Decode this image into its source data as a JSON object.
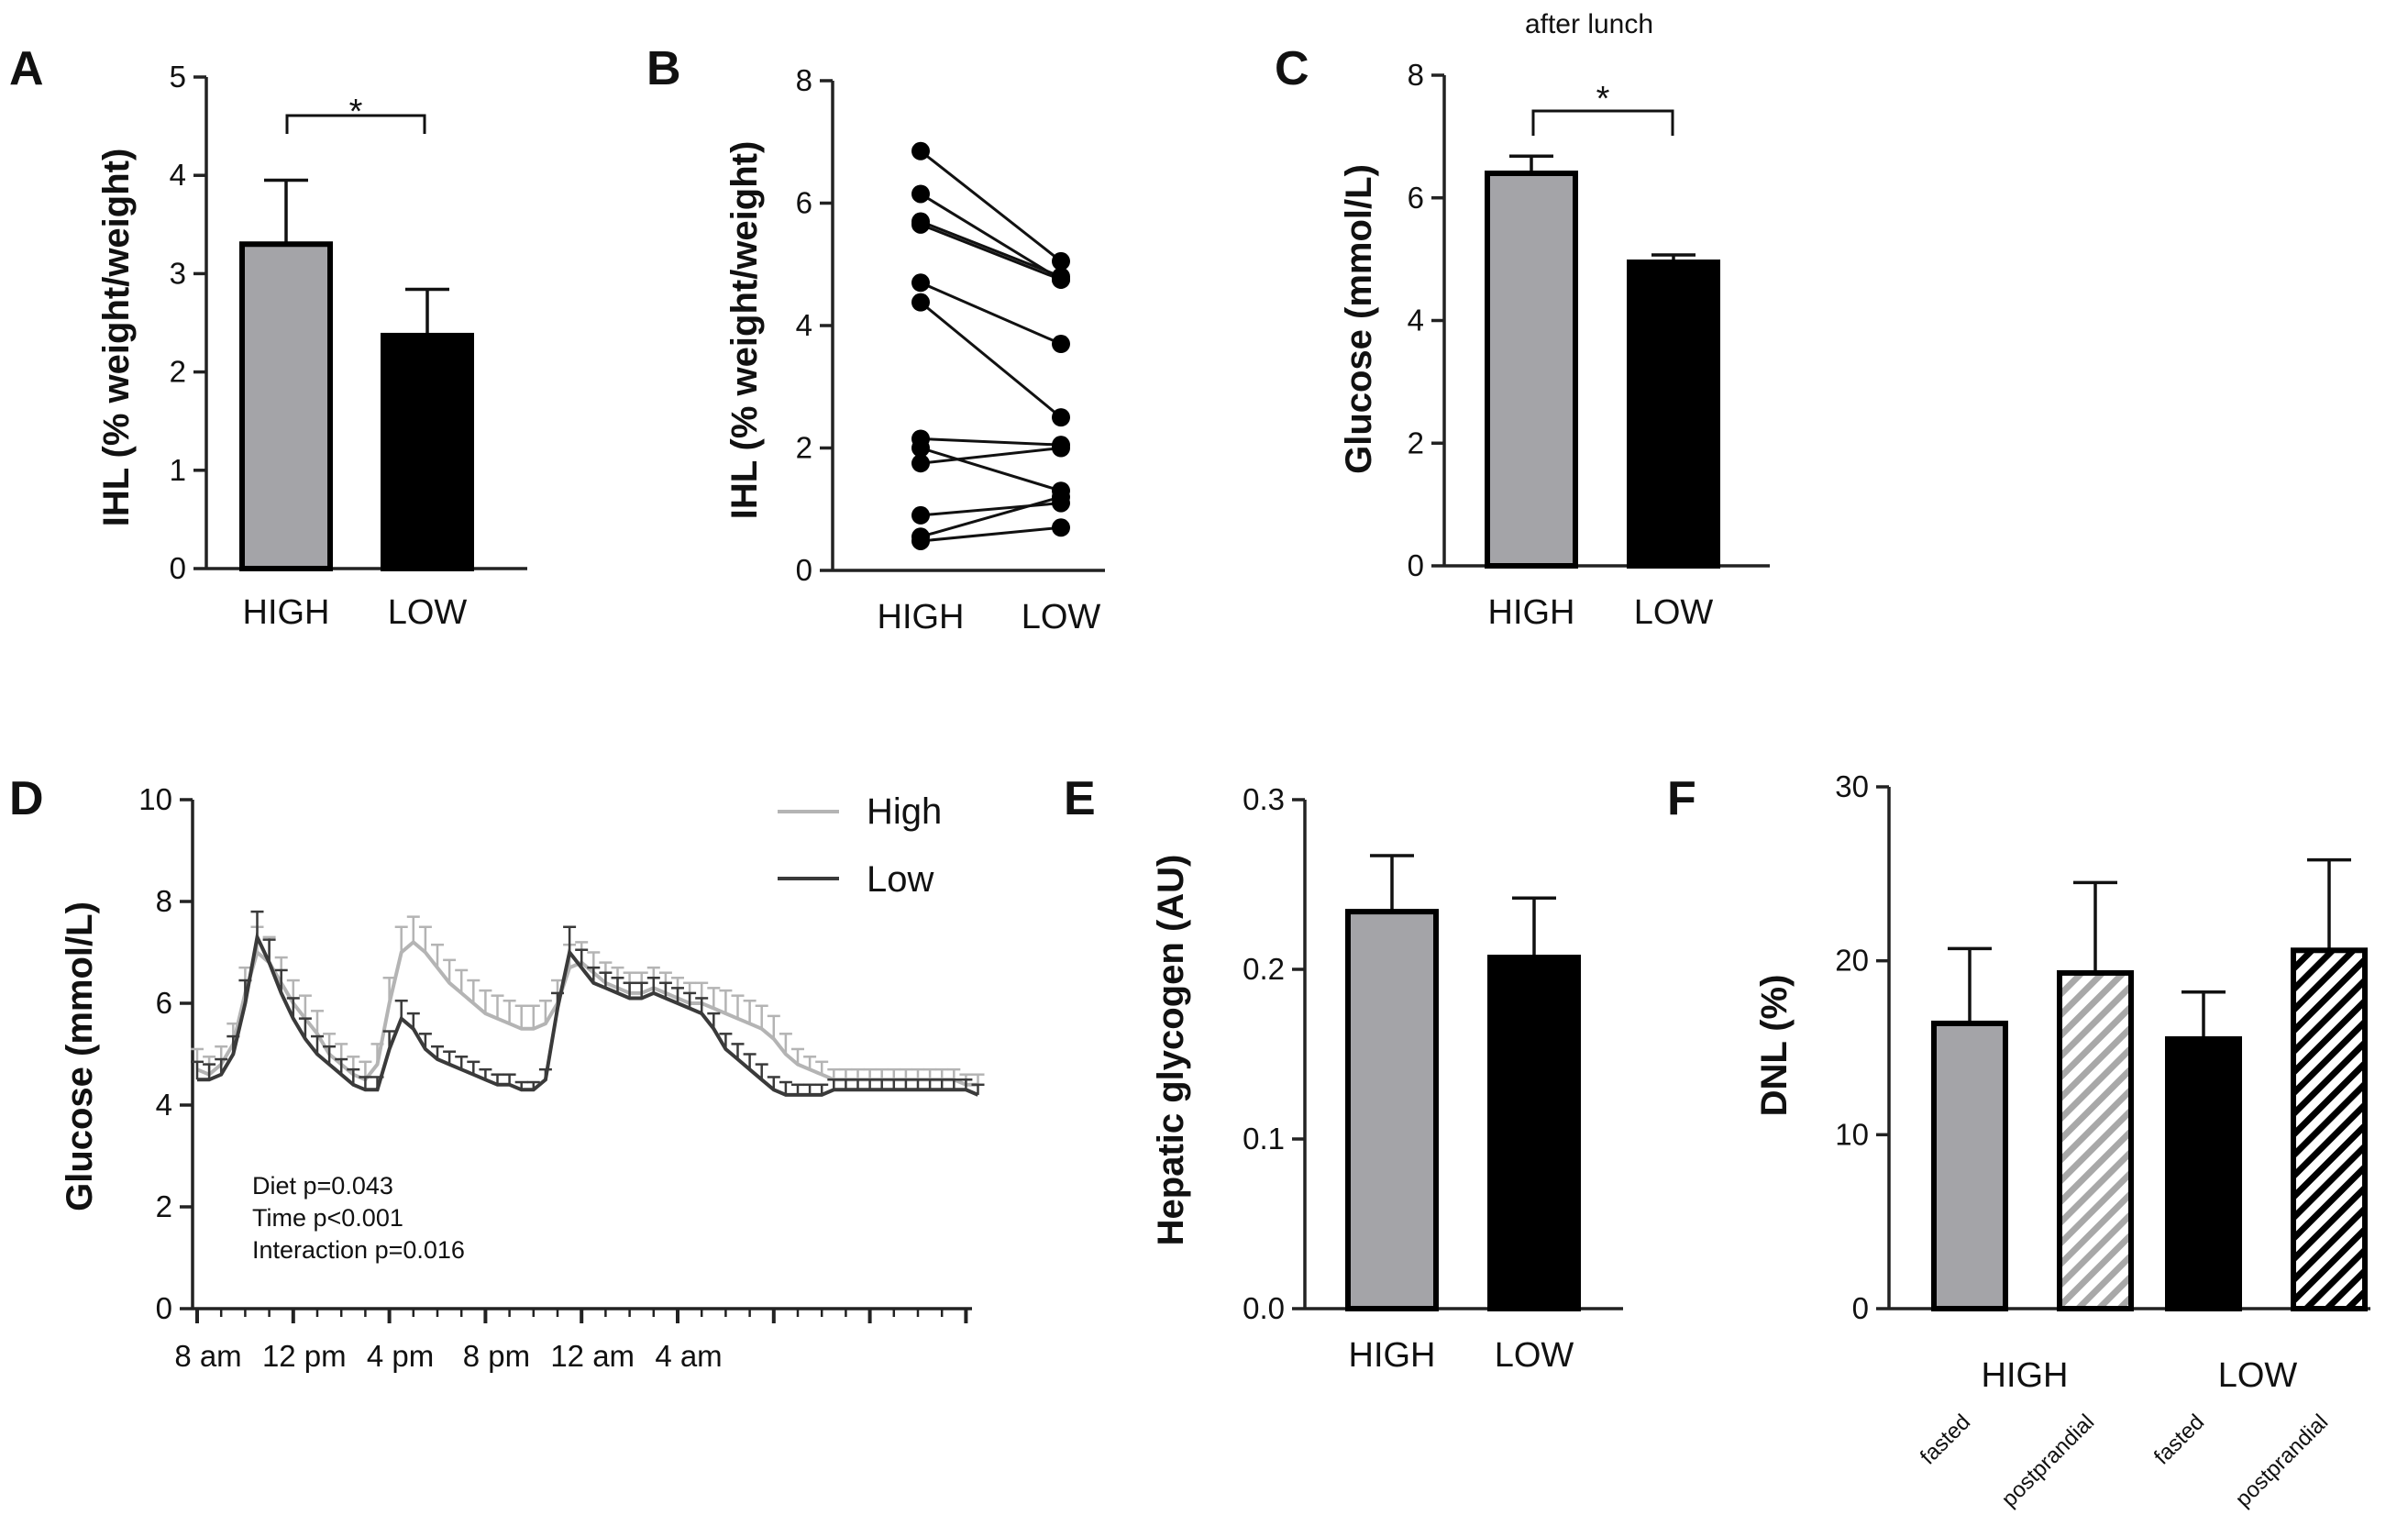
{
  "chart_data": [
    {
      "panel": "A",
      "type": "bar",
      "title": "",
      "ylabel": "IHL (% weight/weight)",
      "xlabel": "",
      "ylim": [
        0,
        5
      ],
      "yticks": [
        "0",
        "1",
        "2",
        "3",
        "4",
        "5"
      ],
      "categories": [
        "HIGH",
        "LOW"
      ],
      "values": [
        3.3,
        2.37
      ],
      "errors": [
        0.65,
        0.47
      ],
      "colors": [
        "#a4a4a8",
        "#000000"
      ],
      "annotation": "*"
    },
    {
      "panel": "B",
      "type": "line",
      "title": "",
      "ylabel": "IHL (% weight/weight)",
      "xlabel": "",
      "ylim": [
        0,
        8
      ],
      "yticks": [
        "0",
        "2",
        "4",
        "6",
        "8"
      ],
      "categories": [
        "HIGH",
        "LOW"
      ],
      "pairs": [
        [
          6.85,
          5.05
        ],
        [
          6.15,
          4.75
        ],
        [
          5.7,
          4.8
        ],
        [
          5.65,
          4.75
        ],
        [
          4.7,
          3.7
        ],
        [
          4.38,
          2.5
        ],
        [
          2.15,
          2.05
        ],
        [
          2.0,
          1.3
        ],
        [
          1.75,
          2.0
        ],
        [
          0.9,
          1.1
        ],
        [
          0.55,
          1.2
        ],
        [
          0.48,
          0.7
        ]
      ]
    },
    {
      "panel": "C",
      "type": "bar",
      "title": "after lunch",
      "ylabel": "Glucose (mmol/L)",
      "xlabel": "",
      "ylim": [
        0,
        8
      ],
      "yticks": [
        "0",
        "2",
        "4",
        "6",
        "8"
      ],
      "categories": [
        "HIGH",
        "LOW"
      ],
      "values": [
        6.4,
        4.95
      ],
      "errors": [
        0.28,
        0.12
      ],
      "colors": [
        "#a4a4a8",
        "#000000"
      ],
      "annotation": "*"
    },
    {
      "panel": "D",
      "type": "line",
      "title": "",
      "ylabel": "Glucose (mmol/L)",
      "xlabel": "",
      "ylim": [
        0,
        10
      ],
      "yticks": [
        "0",
        "2",
        "4",
        "6",
        "8",
        "10"
      ],
      "xticklabels": [
        "8 am",
        "12 pm",
        "4 pm",
        "8 pm",
        "12 am",
        "4 am"
      ],
      "x_hours": [
        0,
        0.5,
        1,
        1.5,
        2,
        2.5,
        3,
        3.5,
        4,
        4.5,
        5,
        5.5,
        6,
        6.5,
        7,
        7.5,
        8,
        8.5,
        9,
        9.5,
        10,
        10.5,
        11,
        11.5,
        12,
        12.5,
        13,
        13.5,
        14,
        14.5,
        15,
        15.5,
        16,
        16.5,
        17,
        17.5,
        18,
        18.5,
        19,
        19.5,
        20,
        20.5,
        21,
        21.5,
        22,
        22.5,
        23,
        23.5,
        24,
        24.5,
        25,
        25.5,
        26,
        26.5,
        27,
        27.5,
        28,
        28.5,
        29,
        29.5,
        30,
        30.5,
        31,
        31.5,
        32,
        32.5
      ],
      "series": [
        {
          "name": "High",
          "color": "#b4b4b4",
          "values": [
            4.7,
            4.6,
            4.8,
            5.2,
            6.2,
            7.0,
            6.8,
            6.4,
            6.0,
            5.7,
            5.4,
            5.0,
            4.8,
            4.6,
            4.5,
            4.8,
            6.0,
            7.0,
            7.2,
            7.0,
            6.7,
            6.4,
            6.2,
            6.0,
            5.8,
            5.7,
            5.6,
            5.5,
            5.5,
            5.6,
            6.0,
            6.7,
            6.8,
            6.6,
            6.4,
            6.3,
            6.2,
            6.2,
            6.3,
            6.2,
            6.1,
            6.0,
            6.0,
            5.9,
            5.8,
            5.7,
            5.6,
            5.5,
            5.3,
            5.0,
            4.8,
            4.7,
            4.6,
            4.5,
            4.5,
            4.5,
            4.5,
            4.5,
            4.5,
            4.5,
            4.5,
            4.5,
            4.5,
            4.5,
            4.4,
            4.4
          ],
          "errors": [
            0.4,
            0.35,
            0.35,
            0.4,
            0.5,
            0.5,
            0.5,
            0.5,
            0.45,
            0.45,
            0.45,
            0.4,
            0.4,
            0.35,
            0.35,
            0.4,
            0.5,
            0.5,
            0.5,
            0.5,
            0.45,
            0.45,
            0.45,
            0.45,
            0.45,
            0.45,
            0.45,
            0.45,
            0.45,
            0.45,
            0.45,
            0.45,
            0.4,
            0.4,
            0.4,
            0.4,
            0.4,
            0.4,
            0.4,
            0.4,
            0.4,
            0.4,
            0.4,
            0.4,
            0.45,
            0.45,
            0.45,
            0.45,
            0.45,
            0.4,
            0.3,
            0.25,
            0.25,
            0.2,
            0.2,
            0.2,
            0.2,
            0.2,
            0.2,
            0.2,
            0.2,
            0.2,
            0.2,
            0.2,
            0.2,
            0.2
          ]
        },
        {
          "name": "Low",
          "color": "#3a3a3a",
          "values": [
            4.5,
            4.5,
            4.6,
            5.0,
            6.0,
            7.3,
            6.8,
            6.2,
            5.7,
            5.3,
            5.0,
            4.8,
            4.6,
            4.4,
            4.3,
            4.3,
            5.1,
            5.7,
            5.5,
            5.1,
            4.9,
            4.8,
            4.7,
            4.6,
            4.5,
            4.4,
            4.4,
            4.3,
            4.3,
            4.5,
            5.9,
            7.0,
            6.7,
            6.4,
            6.3,
            6.2,
            6.1,
            6.1,
            6.2,
            6.1,
            6.0,
            5.9,
            5.8,
            5.5,
            5.1,
            4.9,
            4.7,
            4.5,
            4.3,
            4.2,
            4.2,
            4.2,
            4.2,
            4.3,
            4.3,
            4.3,
            4.3,
            4.3,
            4.3,
            4.3,
            4.3,
            4.3,
            4.3,
            4.3,
            4.3,
            4.2
          ],
          "errors": [
            0.35,
            0.3,
            0.3,
            0.35,
            0.45,
            0.5,
            0.45,
            0.45,
            0.4,
            0.4,
            0.35,
            0.35,
            0.3,
            0.3,
            0.25,
            0.25,
            0.35,
            0.35,
            0.3,
            0.3,
            0.25,
            0.25,
            0.25,
            0.25,
            0.2,
            0.2,
            0.2,
            0.15,
            0.15,
            0.2,
            0.3,
            0.5,
            0.35,
            0.3,
            0.3,
            0.3,
            0.3,
            0.3,
            0.3,
            0.3,
            0.3,
            0.3,
            0.3,
            0.3,
            0.3,
            0.3,
            0.3,
            0.3,
            0.25,
            0.25,
            0.2,
            0.2,
            0.2,
            0.2,
            0.2,
            0.2,
            0.2,
            0.2,
            0.2,
            0.2,
            0.2,
            0.2,
            0.2,
            0.2,
            0.2,
            0.2
          ]
        }
      ],
      "annotations": [
        "Diet p=0.043",
        "Time p<0.001",
        "Interaction p=0.016"
      ]
    },
    {
      "panel": "E",
      "type": "bar",
      "title": "",
      "ylabel": "Hepatic glycogen (AU)",
      "xlabel": "",
      "ylim": [
        0,
        0.3
      ],
      "yticks": [
        "0.0",
        "0.1",
        "0.2",
        "0.3"
      ],
      "categories": [
        "HIGH",
        "LOW"
      ],
      "values": [
        0.234,
        0.207
      ],
      "errors": [
        0.033,
        0.035
      ],
      "colors": [
        "#a4a4a8",
        "#000000"
      ]
    },
    {
      "panel": "F",
      "type": "bar",
      "title": "",
      "ylabel": "DNL (%)",
      "xlabel": "",
      "ylim": [
        0,
        30
      ],
      "yticks": [
        "0",
        "10",
        "20",
        "30"
      ],
      "groups": [
        "HIGH",
        "LOW"
      ],
      "subcategories": [
        "fasted",
        "postprandial",
        "fasted",
        "postprandial"
      ],
      "values": [
        16.4,
        19.3,
        15.5,
        20.6
      ],
      "errors": [
        4.3,
        5.2,
        2.7,
        5.2
      ],
      "styles": [
        "solid-grey",
        "hatched-grey",
        "solid-black",
        "hatched-black"
      ]
    }
  ]
}
